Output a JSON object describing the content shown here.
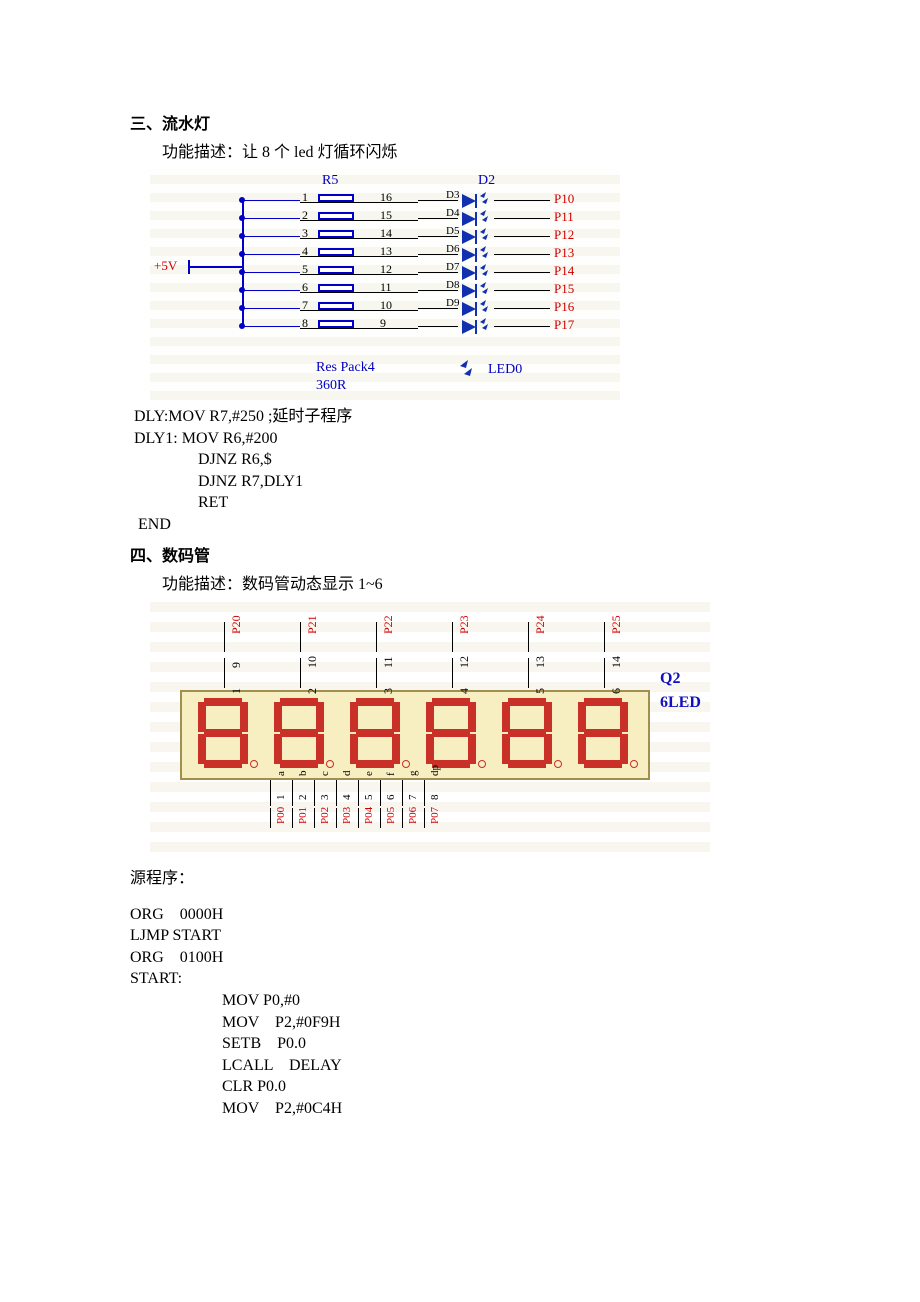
{
  "section3": {
    "title": "三、流水灯",
    "desc": "功能描述：让 8 个 led 灯循环闪烁"
  },
  "diagram1": {
    "r5_label": "R5",
    "d2_label": "D2",
    "left_pins": [
      "1",
      "2",
      "3",
      "4",
      "5",
      "6",
      "7",
      "8"
    ],
    "right_pins": [
      "16",
      "15",
      "14",
      "13",
      "12",
      "11",
      "10",
      "9"
    ],
    "d_labels": [
      "D3",
      "D4",
      "D5",
      "D6",
      "D7",
      "D8",
      "D9"
    ],
    "ports": [
      "P10",
      "P11",
      "P12",
      "P13",
      "P14",
      "P15",
      "P16",
      "P17"
    ],
    "respack_label": "Res Pack4",
    "resval_label": "360R",
    "led0_label": "LED0",
    "vcc_label": "+5V",
    "colors": {
      "wire": "#0000c8",
      "port": "#d00000",
      "led_fill": "#1030b0",
      "bg_grid_a": "#f7f7f0",
      "bg_grid_b": "#fefefc"
    }
  },
  "code1": {
    "l1": " DLY:MOV R7,#250 ;延时子程序",
    "l2": " DLY1: MOV R6,#200",
    "l3": "DJNZ R6,$",
    "l4": "DJNZ R7,DLY1",
    "l5": "RET",
    "l6": "  END"
  },
  "section4": {
    "title": "四、数码管",
    "desc": "功能描述：数码管动态显示 1~6"
  },
  "diagram2": {
    "top_ports": [
      "P20",
      "P21",
      "P22",
      "P23",
      "P24",
      "P25"
    ],
    "top_nums": [
      "9",
      "10",
      "11",
      "12",
      "13",
      "14"
    ],
    "top_pins": [
      "1",
      "2",
      "3",
      "4",
      "5",
      "6"
    ],
    "q2": "Q2",
    "led6": "6LED",
    "bot_labels": [
      "a",
      "b",
      "c",
      "d",
      "e",
      "f",
      "g",
      "dp"
    ],
    "bot_ports_a": [
      "P00",
      "P01",
      "P02",
      "P03",
      "P04",
      "P05",
      "P06",
      "P07"
    ],
    "bot_ports_b": [
      "1",
      "2",
      "3",
      "4",
      "5",
      "6",
      "7",
      "8"
    ],
    "colors": {
      "body_fill": "#f7eec2",
      "body_border": "#a09050",
      "segment": "#c83028",
      "label_blue": "#1010c0",
      "port_red": "#d00000"
    }
  },
  "src_label": "源程序：",
  "code2": {
    "l1": "ORG    0000H",
    "l2": "LJMP START",
    "l3": "ORG    0100H",
    "l4": "START:",
    "l5": "MOV P0,#0",
    "l6": "MOV    P2,#0F9H",
    "l7": "SETB    P0.0",
    "l8": "LCALL    DELAY",
    "l9": "CLR P0.0",
    "l10": "MOV    P2,#0C4H"
  }
}
